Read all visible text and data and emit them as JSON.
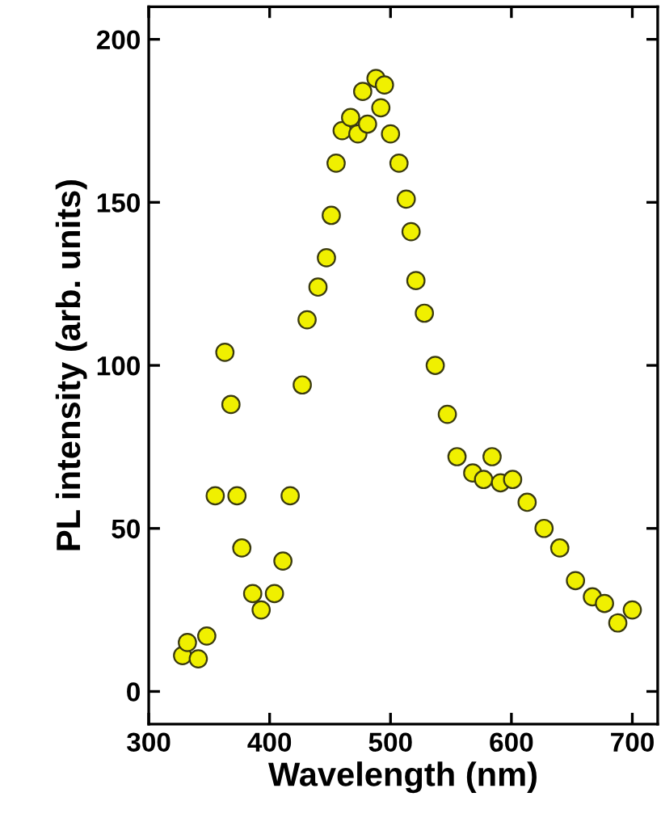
{
  "chart_data": {
    "type": "scatter",
    "xlabel": "Wavelength (nm)",
    "ylabel": "PL intensity (arb. units)",
    "marker": "circle",
    "grid": false,
    "xlim": [
      300,
      721
    ],
    "ylim": [
      -10,
      210
    ],
    "xticks": [
      300,
      400,
      500,
      600,
      700
    ],
    "yticks": [
      0,
      50,
      100,
      150,
      200
    ],
    "x": [
      328,
      332,
      341,
      348,
      355,
      363,
      368,
      373,
      377,
      386,
      393,
      404,
      411,
      417,
      427,
      431,
      440,
      447,
      451,
      455,
      460,
      467,
      473,
      477,
      481,
      488,
      492,
      495,
      500,
      507,
      513,
      517,
      521,
      528,
      537,
      547,
      555,
      568,
      577,
      584,
      591,
      601,
      613,
      627,
      640,
      653,
      667,
      677,
      688,
      700
    ],
    "series": [
      {
        "color": "#f0f000",
        "values": [
          11,
          15,
          10,
          17,
          60,
          104,
          88,
          60,
          44,
          30,
          25,
          30,
          40,
          60,
          94,
          114,
          124,
          133,
          146,
          162,
          172,
          176,
          171,
          184,
          174,
          188,
          179,
          186,
          171,
          162,
          151,
          141,
          126,
          116,
          100,
          85,
          72,
          67,
          65,
          72,
          64,
          65,
          58,
          50,
          44,
          34,
          29,
          27,
          21,
          25
        ]
      }
    ]
  }
}
